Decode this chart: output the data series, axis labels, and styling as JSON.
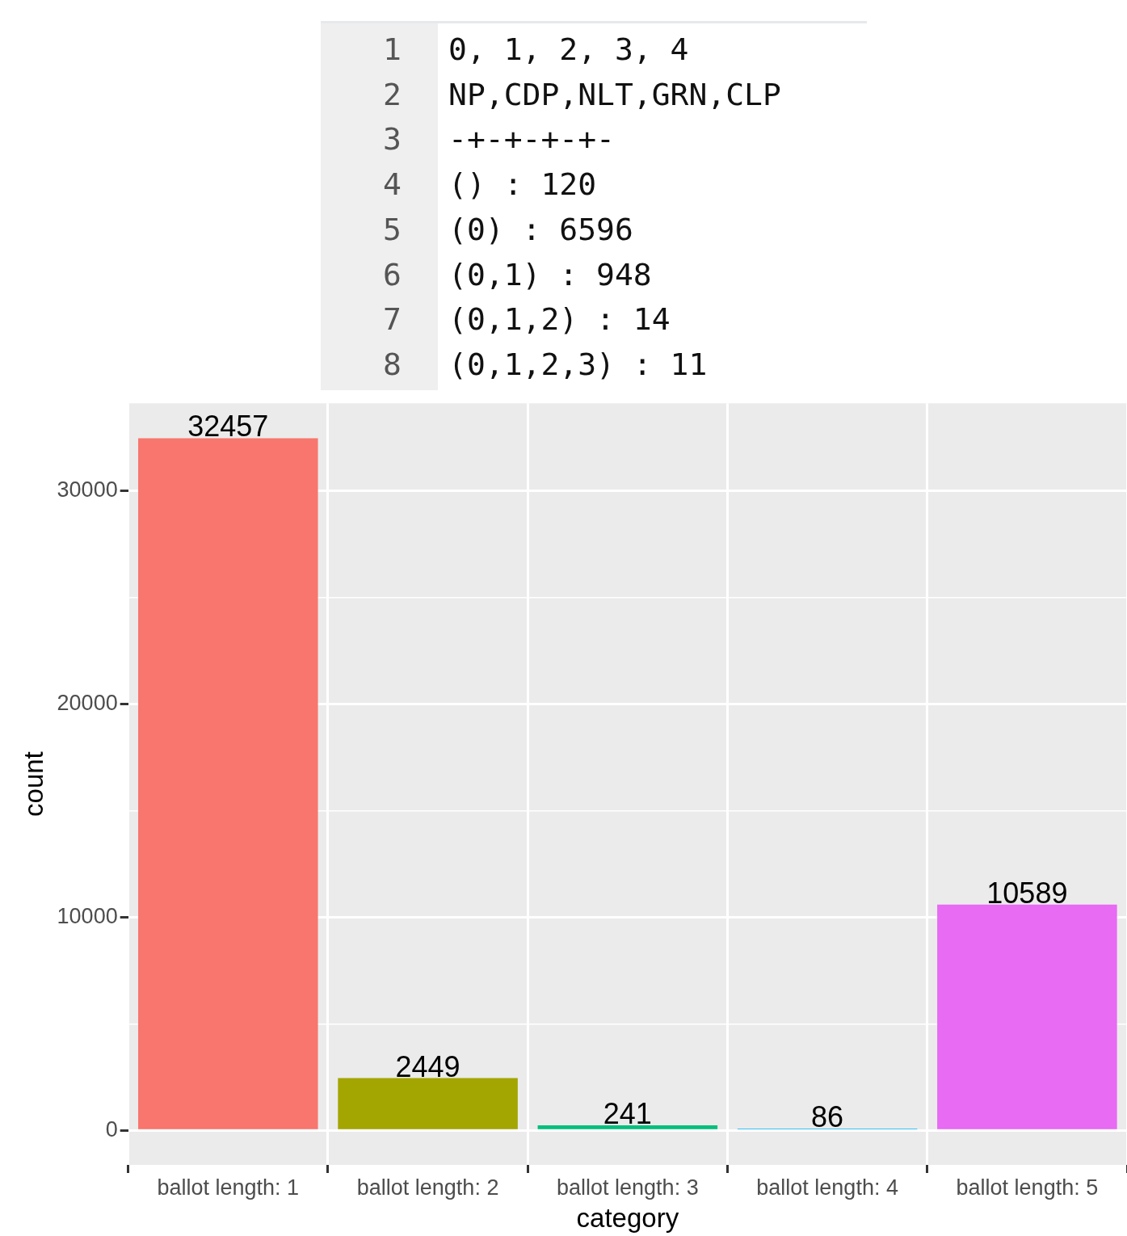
{
  "chart_data": {
    "type": "bar",
    "categories": [
      "ballot length: 1",
      "ballot length: 2",
      "ballot length: 3",
      "ballot length: 4",
      "ballot length: 5"
    ],
    "values": [
      32457,
      2449,
      241,
      86,
      10589
    ],
    "colors": [
      "#f8766d",
      "#a3a500",
      "#00bf7d",
      "#00b0f6",
      "#e76bf3"
    ],
    "xlabel": "category",
    "ylabel": "count",
    "ylim": [
      -1620,
      34100
    ],
    "yticks": [
      0,
      {
        "value": 5000,
        "label": null
      },
      10000,
      {
        "value": 15000,
        "label": null
      },
      20000,
      {
        "value": 25000,
        "label": null
      },
      30000
    ],
    "grid": true,
    "data_labels": true,
    "annotations": [
      "1",
      "0, 1, 2, 3, 4",
      "2",
      "NP,CDP,NLT,GRN,CLP",
      "3",
      "-+-+-+-+-",
      "4",
      "() : 120",
      "5",
      "(0) : 6596",
      "6",
      "(0,1) : 948",
      "7",
      "(0,1,2) : 14",
      "8",
      "(0,1,2,3) : 11"
    ]
  }
}
